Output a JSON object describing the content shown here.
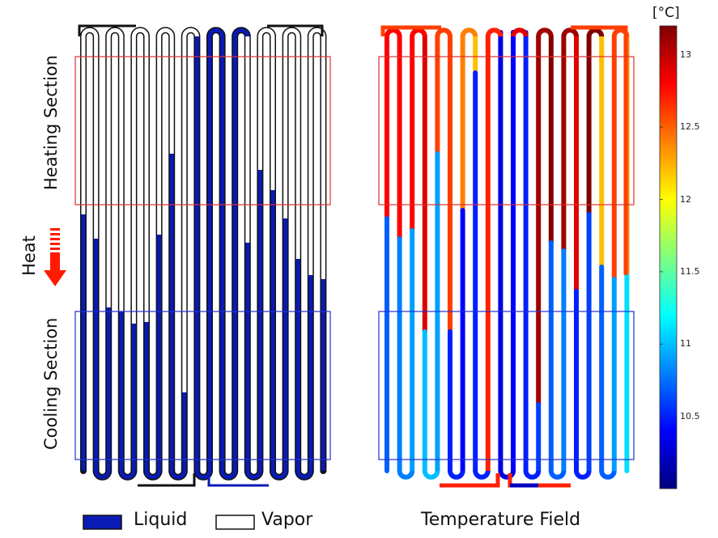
{
  "labels": {
    "heating": "Heating Section",
    "cooling": "Cooling Section",
    "heat": "Heat",
    "legend_liquid": "Liquid",
    "legend_vapor": "Vapor",
    "temperature_title": "Temperature Field",
    "unit": "[°C]"
  },
  "colorbar": {
    "ticks": [
      "13",
      "12.5",
      "12",
      "11.5",
      "11",
      "10.5"
    ],
    "min": 10.0,
    "max": 13.2,
    "colors": [
      "#00007f",
      "#0000ff",
      "#007fff",
      "#00ffff",
      "#7fff7f",
      "#ffff00",
      "#ff7f00",
      "#ff0000",
      "#7f0000"
    ]
  },
  "colors": {
    "liquid": "#0a1ab4",
    "vapor": "#ffffff",
    "heating_box": "#e03030",
    "cooling_box": "#2030d0",
    "arrow": "#ff1a00"
  }
}
